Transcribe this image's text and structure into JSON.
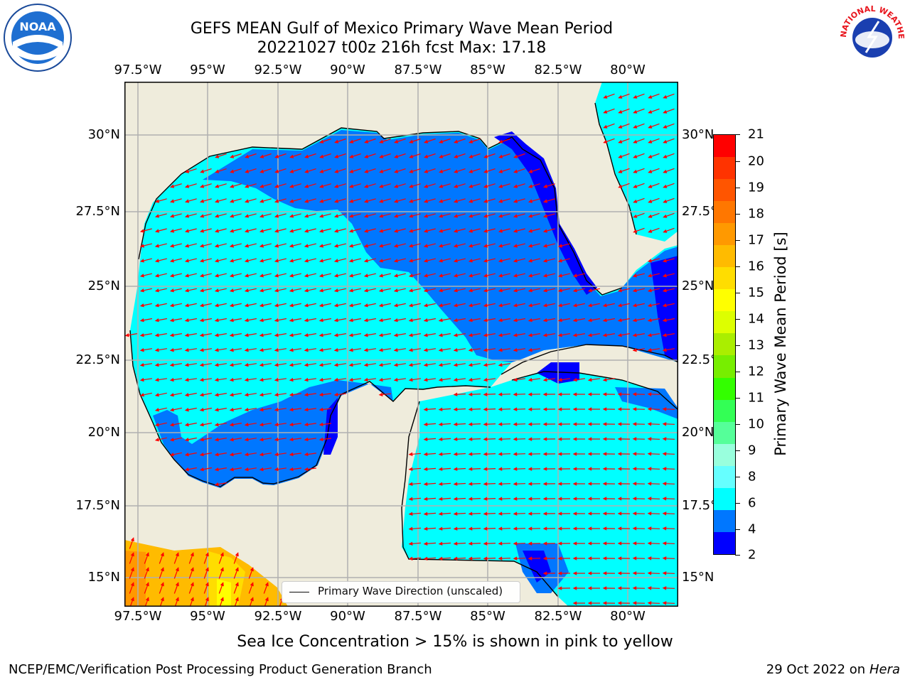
{
  "header": {
    "title_line1": "GEFS MEAN Gulf of Mexico Primary Wave Mean Period",
    "title_line2": "20221027 t00z 216h fcst   Max: 17.18"
  },
  "axes": {
    "lon_ticks": [
      "97.5°W",
      "95°W",
      "92.5°W",
      "90°W",
      "87.5°W",
      "85°W",
      "82.5°W",
      "80°W"
    ],
    "lat_ticks": [
      "30°N",
      "27.5°N",
      "25°N",
      "22.5°N",
      "20°N",
      "17.5°N",
      "15°N"
    ]
  },
  "colorbar": {
    "label": "Primary Wave Mean Period [s]",
    "ticks": [
      "21",
      "20",
      "19",
      "18",
      "17",
      "16",
      "15",
      "14",
      "13",
      "12",
      "11",
      "10",
      "9",
      "8",
      "6",
      "4",
      "2"
    ],
    "colors": [
      "#ff0000",
      "#ff3300",
      "#ff5500",
      "#ff7700",
      "#ff9900",
      "#ffbb00",
      "#ffdd00",
      "#ffff00",
      "#ddff00",
      "#aaee00",
      "#77ee00",
      "#33ff00",
      "#33ff55",
      "#55ff99",
      "#99ffdd",
      "#66ffff",
      "#00ffff",
      "#0077ff",
      "#0000ff"
    ]
  },
  "legend": {
    "label": "Primary Wave Direction (unscaled)"
  },
  "caption": "Sea Ice Concentration > 15% is shown in pink to yellow",
  "footer": {
    "left": "NCEP/EMC/Verification Post Processing Product Generation Branch",
    "right_date": "29 Oct 2022 on ",
    "right_host": "Hera"
  },
  "logos": {
    "left": "NOAA",
    "right": "NATIONAL WEATHER SERVICE"
  },
  "colors": {
    "land": "#efecdc",
    "cyan": "#00ffff",
    "mid_blue": "#0077ff",
    "deep_blue": "#0000ff",
    "arrow": "#ff0000"
  }
}
